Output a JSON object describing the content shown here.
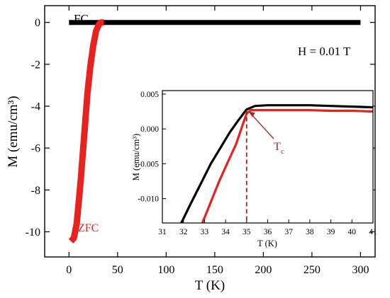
{
  "chart_data": [
    {
      "type": "line",
      "xlabel": "T (K)",
      "ylabel": "M (emu/cm³)",
      "xlim": [
        -25,
        315
      ],
      "ylim": [
        -11.2,
        0.8
      ],
      "xticks": [
        0,
        50,
        100,
        150,
        200,
        250,
        300
      ],
      "yticks": [
        0,
        -2,
        -4,
        -6,
        -8,
        -10
      ],
      "annotations": {
        "field": "H = 0.01 T"
      },
      "series": [
        {
          "name": "FC",
          "color": "#000000",
          "points": [
            [
              0,
              0.0
            ],
            [
              30,
              0.0
            ],
            [
              100,
              0.0
            ],
            [
              200,
              0.0
            ],
            [
              300,
              0.0
            ]
          ]
        },
        {
          "name": "ZFC",
          "color": "#e8221e",
          "points": [
            [
              2,
              -10.45
            ],
            [
              5,
              -10.3
            ],
            [
              8,
              -9.6
            ],
            [
              12,
              -7.6
            ],
            [
              16,
              -5.2
            ],
            [
              19,
              -3.4
            ],
            [
              22,
              -2.1
            ],
            [
              25,
              -1.1
            ],
            [
              28,
              -0.4
            ],
            [
              31,
              -0.08
            ],
            [
              33,
              0.0
            ],
            [
              36,
              0.0
            ]
          ]
        }
      ]
    },
    {
      "type": "line",
      "xlabel": "T (K)",
      "ylabel": "M (emu/cm³)",
      "xlim": [
        31,
        41
      ],
      "ylim": [
        -0.0135,
        0.0055
      ],
      "xticks": [
        31,
        32,
        33,
        34,
        35,
        36,
        37,
        38,
        39,
        40,
        41
      ],
      "yticks": [
        0.005,
        0.0,
        -0.005,
        -0.01
      ],
      "ytick_labels": [
        "0.005",
        "0.000",
        "-0.005",
        "-0.010"
      ],
      "annotations": {
        "tc_label": "T",
        "tc_sub": "c",
        "tc_x": 35,
        "tc_y": 0.0027
      },
      "series": [
        {
          "name": "FC",
          "color": "#000000",
          "points": [
            [
              31.9,
              -0.0135
            ],
            [
              32.3,
              -0.011
            ],
            [
              32.8,
              -0.008
            ],
            [
              33.3,
              -0.005
            ],
            [
              33.8,
              -0.0025
            ],
            [
              34.2,
              -0.0005
            ],
            [
              34.6,
              0.0012
            ],
            [
              35.0,
              0.0028
            ],
            [
              35.4,
              0.0033
            ],
            [
              36.0,
              0.0034
            ],
            [
              37.0,
              0.0034
            ],
            [
              38.0,
              0.0034
            ],
            [
              39.0,
              0.0033
            ],
            [
              40.0,
              0.0032
            ],
            [
              41.0,
              0.0031
            ]
          ]
        },
        {
          "name": "ZFC",
          "color": "#e8221e",
          "points": [
            [
              32.9,
              -0.0135
            ],
            [
              33.3,
              -0.0105
            ],
            [
              33.7,
              -0.0075
            ],
            [
              34.1,
              -0.0048
            ],
            [
              34.5,
              -0.0022
            ],
            [
              34.8,
              0.0005
            ],
            [
              35.0,
              0.0022
            ],
            [
              35.2,
              0.0027
            ],
            [
              36.0,
              0.0027
            ],
            [
              37.0,
              0.0027
            ],
            [
              38.0,
              0.0027
            ],
            [
              39.0,
              0.0026
            ],
            [
              40.0,
              0.0026
            ],
            [
              41.0,
              0.0025
            ]
          ]
        }
      ]
    }
  ],
  "colors": {
    "fc": "#000000",
    "zfc": "#e8221e",
    "marker": "#a0261c"
  }
}
